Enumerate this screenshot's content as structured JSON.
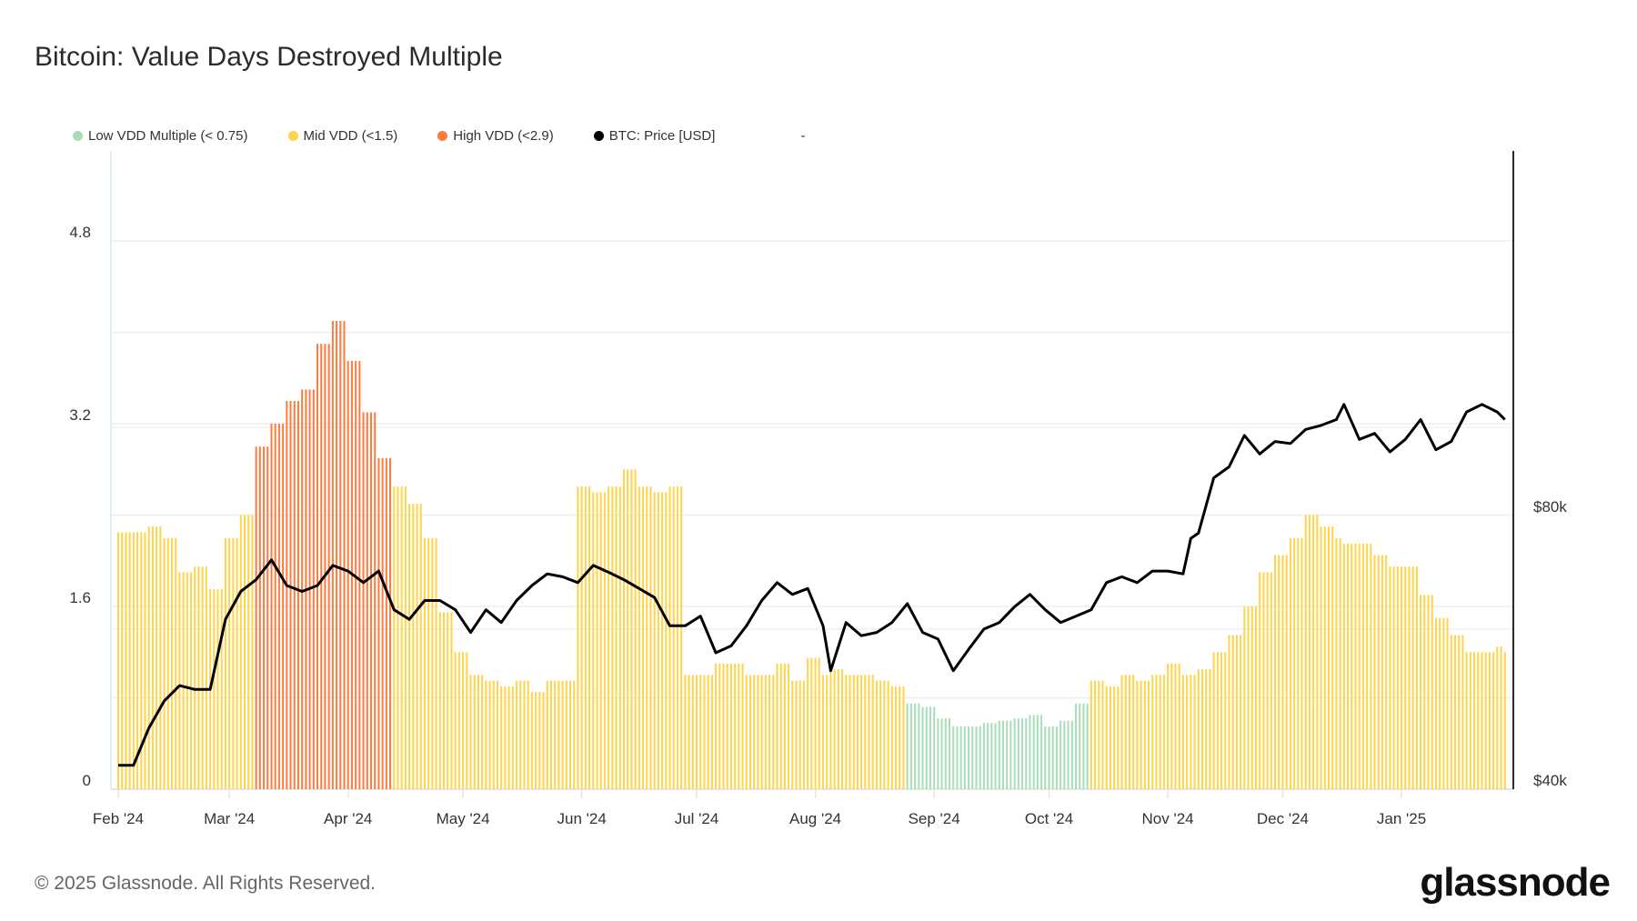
{
  "title": "Bitcoin: Value Days Destroyed Multiple",
  "footer": "© 2025 Glassnode. All Rights Reserved.",
  "logo": "glassnode",
  "legend": [
    {
      "label": "Low VDD Multiple (< 0.75)",
      "color": "#a9ddb8"
    },
    {
      "label": "Mid VDD (<1.5)",
      "color": "#ffd44a"
    },
    {
      "label": "High VDD (<2.9)",
      "color": "#ff7a3d"
    },
    {
      "label": "BTC: Price [USD]",
      "color": "#000000"
    },
    {
      "label": "-",
      "color": ""
    }
  ],
  "chart_data": {
    "type": "bar+line",
    "title": "Bitcoin: Value Days Destroyed Multiple",
    "x_ticks": [
      {
        "label": "Feb '24",
        "date": "2024-02-01"
      },
      {
        "label": "Mar '24",
        "date": "2024-03-01"
      },
      {
        "label": "Apr '24",
        "date": "2024-04-01"
      },
      {
        "label": "May '24",
        "date": "2024-05-01"
      },
      {
        "label": "Jun '24",
        "date": "2024-06-01"
      },
      {
        "label": "Jul '24",
        "date": "2024-07-01"
      },
      {
        "label": "Aug '24",
        "date": "2024-08-01"
      },
      {
        "label": "Sep '24",
        "date": "2024-09-01"
      },
      {
        "label": "Oct '24",
        "date": "2024-10-01"
      },
      {
        "label": "Nov '24",
        "date": "2024-11-01"
      },
      {
        "label": "Dec '24",
        "date": "2024-12-01"
      },
      {
        "label": "Jan '25",
        "date": "2025-01-01"
      }
    ],
    "y_left": {
      "ticks": [
        0,
        1.6,
        3.2,
        4.8
      ],
      "tick_labels": [
        "0",
        "1.6",
        "3.2",
        "4.8"
      ],
      "grid": [
        0.8,
        1.6,
        2.4,
        3.2,
        4.0,
        4.8
      ],
      "range": [
        0,
        5.6
      ]
    },
    "y_right": {
      "scale": "log",
      "ticks": [
        40000,
        80000
      ],
      "tick_labels": [
        "$40k",
        "$80k"
      ],
      "grid": [
        60000,
        100000
      ]
    },
    "grid": true,
    "legend_placement": "top-left",
    "dates": [
      "2024-02-01",
      "2024-02-05",
      "2024-02-09",
      "2024-02-13",
      "2024-02-17",
      "2024-02-21",
      "2024-02-25",
      "2024-02-29",
      "2024-03-04",
      "2024-03-08",
      "2024-03-12",
      "2024-03-16",
      "2024-03-20",
      "2024-03-24",
      "2024-03-28",
      "2024-04-01",
      "2024-04-05",
      "2024-04-09",
      "2024-04-13",
      "2024-04-17",
      "2024-04-21",
      "2024-04-25",
      "2024-04-29",
      "2024-05-03",
      "2024-05-07",
      "2024-05-11",
      "2024-05-15",
      "2024-05-19",
      "2024-05-23",
      "2024-05-27",
      "2024-05-31",
      "2024-06-04",
      "2024-06-08",
      "2024-06-12",
      "2024-06-16",
      "2024-06-20",
      "2024-06-24",
      "2024-06-28",
      "2024-07-02",
      "2024-07-06",
      "2024-07-10",
      "2024-07-14",
      "2024-07-18",
      "2024-07-22",
      "2024-07-26",
      "2024-07-30",
      "2024-08-03",
      "2024-08-05",
      "2024-08-09",
      "2024-08-13",
      "2024-08-17",
      "2024-08-21",
      "2024-08-25",
      "2024-08-29",
      "2024-09-02",
      "2024-09-06",
      "2024-09-10",
      "2024-09-14",
      "2024-09-18",
      "2024-09-22",
      "2024-09-26",
      "2024-09-30",
      "2024-10-04",
      "2024-10-08",
      "2024-10-12",
      "2024-10-16",
      "2024-10-20",
      "2024-10-24",
      "2024-10-28",
      "2024-11-01",
      "2024-11-05",
      "2024-11-07",
      "2024-11-09",
      "2024-11-13",
      "2024-11-17",
      "2024-11-21",
      "2024-11-25",
      "2024-11-29",
      "2024-12-03",
      "2024-12-07",
      "2024-12-11",
      "2024-12-15",
      "2024-12-17",
      "2024-12-21",
      "2024-12-25",
      "2024-12-29",
      "2025-01-02",
      "2025-01-06",
      "2025-01-10",
      "2025-01-14",
      "2025-01-18",
      "2025-01-22",
      "2025-01-26",
      "2025-01-28"
    ],
    "series": [
      {
        "name": "VDD Multiple",
        "type": "bar",
        "values": [
          2.25,
          2.25,
          2.3,
          2.2,
          1.9,
          1.95,
          1.75,
          2.2,
          2.4,
          3.0,
          3.2,
          3.4,
          3.5,
          3.9,
          4.1,
          3.75,
          3.3,
          2.9,
          2.65,
          2.5,
          2.2,
          1.55,
          1.2,
          1.0,
          0.95,
          0.9,
          0.95,
          0.85,
          0.95,
          0.95,
          2.65,
          2.6,
          2.65,
          2.8,
          2.65,
          2.6,
          2.65,
          1.0,
          1.0,
          1.1,
          1.1,
          1.0,
          1.0,
          1.1,
          0.95,
          1.15,
          1.0,
          1.05,
          1.0,
          1.0,
          0.95,
          0.9,
          0.75,
          0.72,
          0.62,
          0.55,
          0.55,
          0.58,
          0.6,
          0.62,
          0.65,
          0.55,
          0.6,
          0.75,
          0.95,
          0.9,
          1.0,
          0.95,
          1.0,
          1.1,
          1.0,
          1.0,
          1.05,
          1.2,
          1.35,
          1.6,
          1.9,
          2.05,
          2.2,
          2.4,
          2.3,
          2.2,
          2.15,
          2.15,
          2.05,
          1.95,
          1.95,
          1.7,
          1.5,
          1.35,
          1.2,
          1.2,
          1.25,
          1.2
        ],
        "zone": [
          "M",
          "M",
          "M",
          "M",
          "M",
          "M",
          "M",
          "M",
          "M",
          "H",
          "H",
          "H",
          "H",
          "H",
          "H",
          "H",
          "H",
          "H",
          "M",
          "M",
          "M",
          "M",
          "M",
          "M",
          "M",
          "M",
          "M",
          "M",
          "M",
          "M",
          "M",
          "M",
          "M",
          "M",
          "M",
          "M",
          "M",
          "M",
          "M",
          "M",
          "M",
          "M",
          "M",
          "M",
          "M",
          "M",
          "M",
          "M",
          "M",
          "M",
          "M",
          "M",
          "L",
          "L",
          "L",
          "L",
          "L",
          "L",
          "L",
          "L",
          "L",
          "L",
          "L",
          "L",
          "M",
          "M",
          "M",
          "M",
          "M",
          "M",
          "M",
          "M",
          "M",
          "M",
          "M",
          "M",
          "M",
          "M",
          "M",
          "M",
          "M",
          "M",
          "M",
          "M",
          "M",
          "M",
          "M",
          "M",
          "M",
          "M",
          "M",
          "M",
          "M",
          "M"
        ]
      },
      {
        "name": "BTC: Price [USD]",
        "type": "line",
        "axis": "right",
        "values": [
          42500,
          42500,
          46700,
          50000,
          52000,
          51500,
          51500,
          61500,
          66000,
          68000,
          71500,
          67000,
          66000,
          67000,
          70500,
          69500,
          67500,
          69500,
          63000,
          61500,
          64500,
          64500,
          63000,
          59500,
          63000,
          61000,
          64500,
          67000,
          69000,
          68500,
          67500,
          70500,
          69300,
          68000,
          66500,
          65000,
          60500,
          60500,
          62000,
          56500,
          57500,
          60500,
          64500,
          67500,
          65500,
          66500,
          60500,
          54000,
          61000,
          59000,
          59500,
          61000,
          64000,
          59500,
          58500,
          54000,
          57000,
          60000,
          61000,
          63500,
          65500,
          63000,
          61000,
          62000,
          63000,
          67500,
          68500,
          67500,
          69500,
          69500,
          69000,
          75500,
          76500,
          88000,
          90500,
          98000,
          93500,
          96500,
          96000,
          99500,
          100500,
          102000,
          106000,
          97000,
          98500,
          94000,
          97000,
          102000,
          94500,
          96500,
          104000,
          106000,
          104000,
          102000
        ]
      }
    ]
  }
}
